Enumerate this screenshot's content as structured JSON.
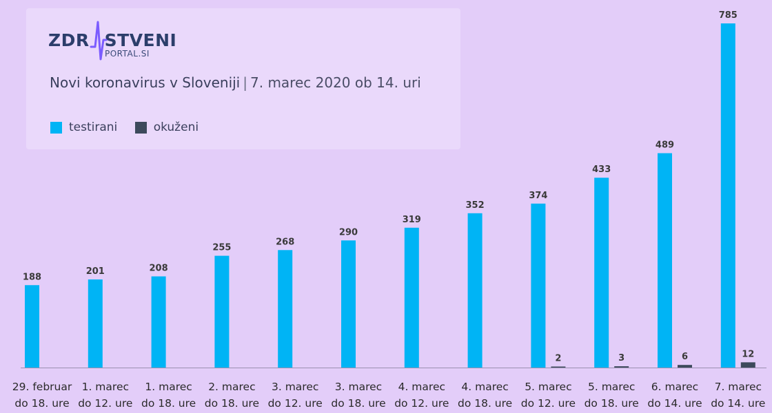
{
  "logo": {
    "text_left": "ZDR",
    "text_right": "STVENI",
    "sub": "PORTAL.SI",
    "accent_color": "#7b5cff",
    "main_color": "#2c3e6b"
  },
  "title": {
    "main": "Novi koronavirus v Sloveniji",
    "separator": "|",
    "sub": "7. marec 2020 ob 14. uri"
  },
  "colors": {
    "testirani": "#00b4f5",
    "okuzeni": "#3d4a5c",
    "background": "#e3cdf9",
    "panel": "#ead9fb"
  },
  "chart_data": {
    "type": "bar",
    "title": "Novi koronavirus v Sloveniji | 7. marec 2020 ob 14. uri",
    "categories": [
      [
        "29. februar",
        "do 18. ure"
      ],
      [
        "1. marec",
        "do 12. ure"
      ],
      [
        "1. marec",
        "do 18. ure"
      ],
      [
        "2. marec",
        "do 18. ure"
      ],
      [
        "3. marec",
        "do 12. ure"
      ],
      [
        "3. marec",
        "do 18. ure"
      ],
      [
        "4. marec",
        "do 12. ure"
      ],
      [
        "4. marec",
        "do 18. ure"
      ],
      [
        "5. marec",
        "do 12. ure"
      ],
      [
        "5. marec",
        "do 18. ure"
      ],
      [
        "6. marec",
        "do 14. ure"
      ],
      [
        "7. marec",
        "do 14. ure"
      ]
    ],
    "series": [
      {
        "name": "testirani",
        "values": [
          188,
          201,
          208,
          255,
          268,
          290,
          319,
          352,
          374,
          433,
          489,
          785
        ]
      },
      {
        "name": "okuženi",
        "values": [
          0,
          0,
          0,
          0,
          0,
          0,
          0,
          0,
          2,
          3,
          6,
          12
        ]
      }
    ],
    "ylim": [
      0,
      800
    ],
    "grid": false,
    "legend": "top-left"
  }
}
